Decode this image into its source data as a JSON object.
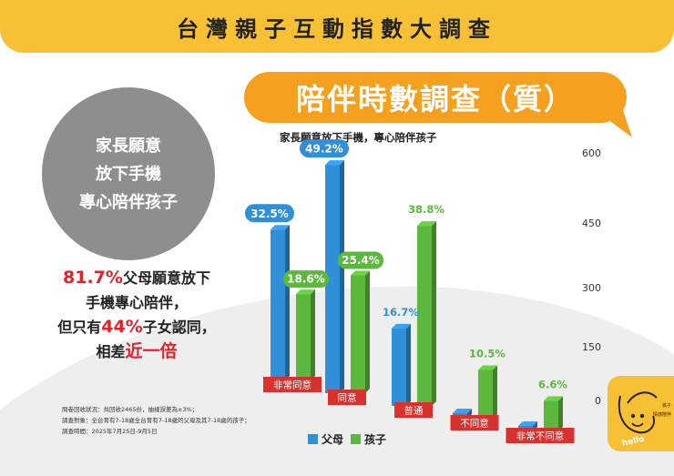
{
  "header": {
    "title": "台灣親子互動指數大調查"
  },
  "bubble": {
    "title": "陪伴時數調查（質）"
  },
  "circle": {
    "line1": "家長願意",
    "line2": "放下手機",
    "line3": "專心陪伴孩子"
  },
  "summary": {
    "l1_red": "81.7%",
    "l1_rest": "父母願意放下",
    "l2": "手機專心陪伴，",
    "l3_pre": "但只有",
    "l3_red": "44%",
    "l3_post": "子女認同，",
    "l4_pre": "相差",
    "l4_red": "近一倍"
  },
  "footnote": {
    "line1": "問卷回收狀況：共回收2465份，抽樣誤差為±3%；",
    "line2": "調查對象：全台育有7-18歲全台育有7-18歲的父母及其7-18歲的孩子；",
    "line3": "調查時間：2025年7月25日-9月5日"
  },
  "logo": {
    "text1": "孩子",
    "text2": "情感陪伴",
    "text3": "hello"
  },
  "colors": {
    "parent": "#2f8fd8",
    "child": "#5cb83c",
    "category": "#d8312e",
    "accent": "#f5a11f",
    "header_bg": "#f8c135"
  },
  "chart_data": {
    "type": "bar",
    "subtitle": "家長願意放下手機，專心陪伴孩子",
    "categories": [
      "非常同意",
      "同意",
      "普通",
      "不同意",
      "非常不同意"
    ],
    "series": [
      {
        "name": "父母",
        "values": [
          32.5,
          49.2,
          16.7,
          1.0,
          0.9
        ],
        "labels": [
          "32.5%",
          "49.2%",
          "16.7%",
          "",
          ""
        ]
      },
      {
        "name": "孩子",
        "values": [
          18.6,
          25.4,
          38.8,
          10.5,
          6.6
        ],
        "labels": [
          "18.6%",
          "25.4%",
          "38.8%",
          "10.5%",
          "6.6%"
        ]
      }
    ],
    "y_ticks": [
      "600",
      "450",
      "300",
      "150",
      "0"
    ],
    "y_tick_values": [
      600,
      450,
      300,
      150,
      0
    ],
    "legend": [
      {
        "key": "parent",
        "label": "父母"
      },
      {
        "key": "child",
        "label": "孩子"
      }
    ],
    "legend_position": "bottom"
  }
}
